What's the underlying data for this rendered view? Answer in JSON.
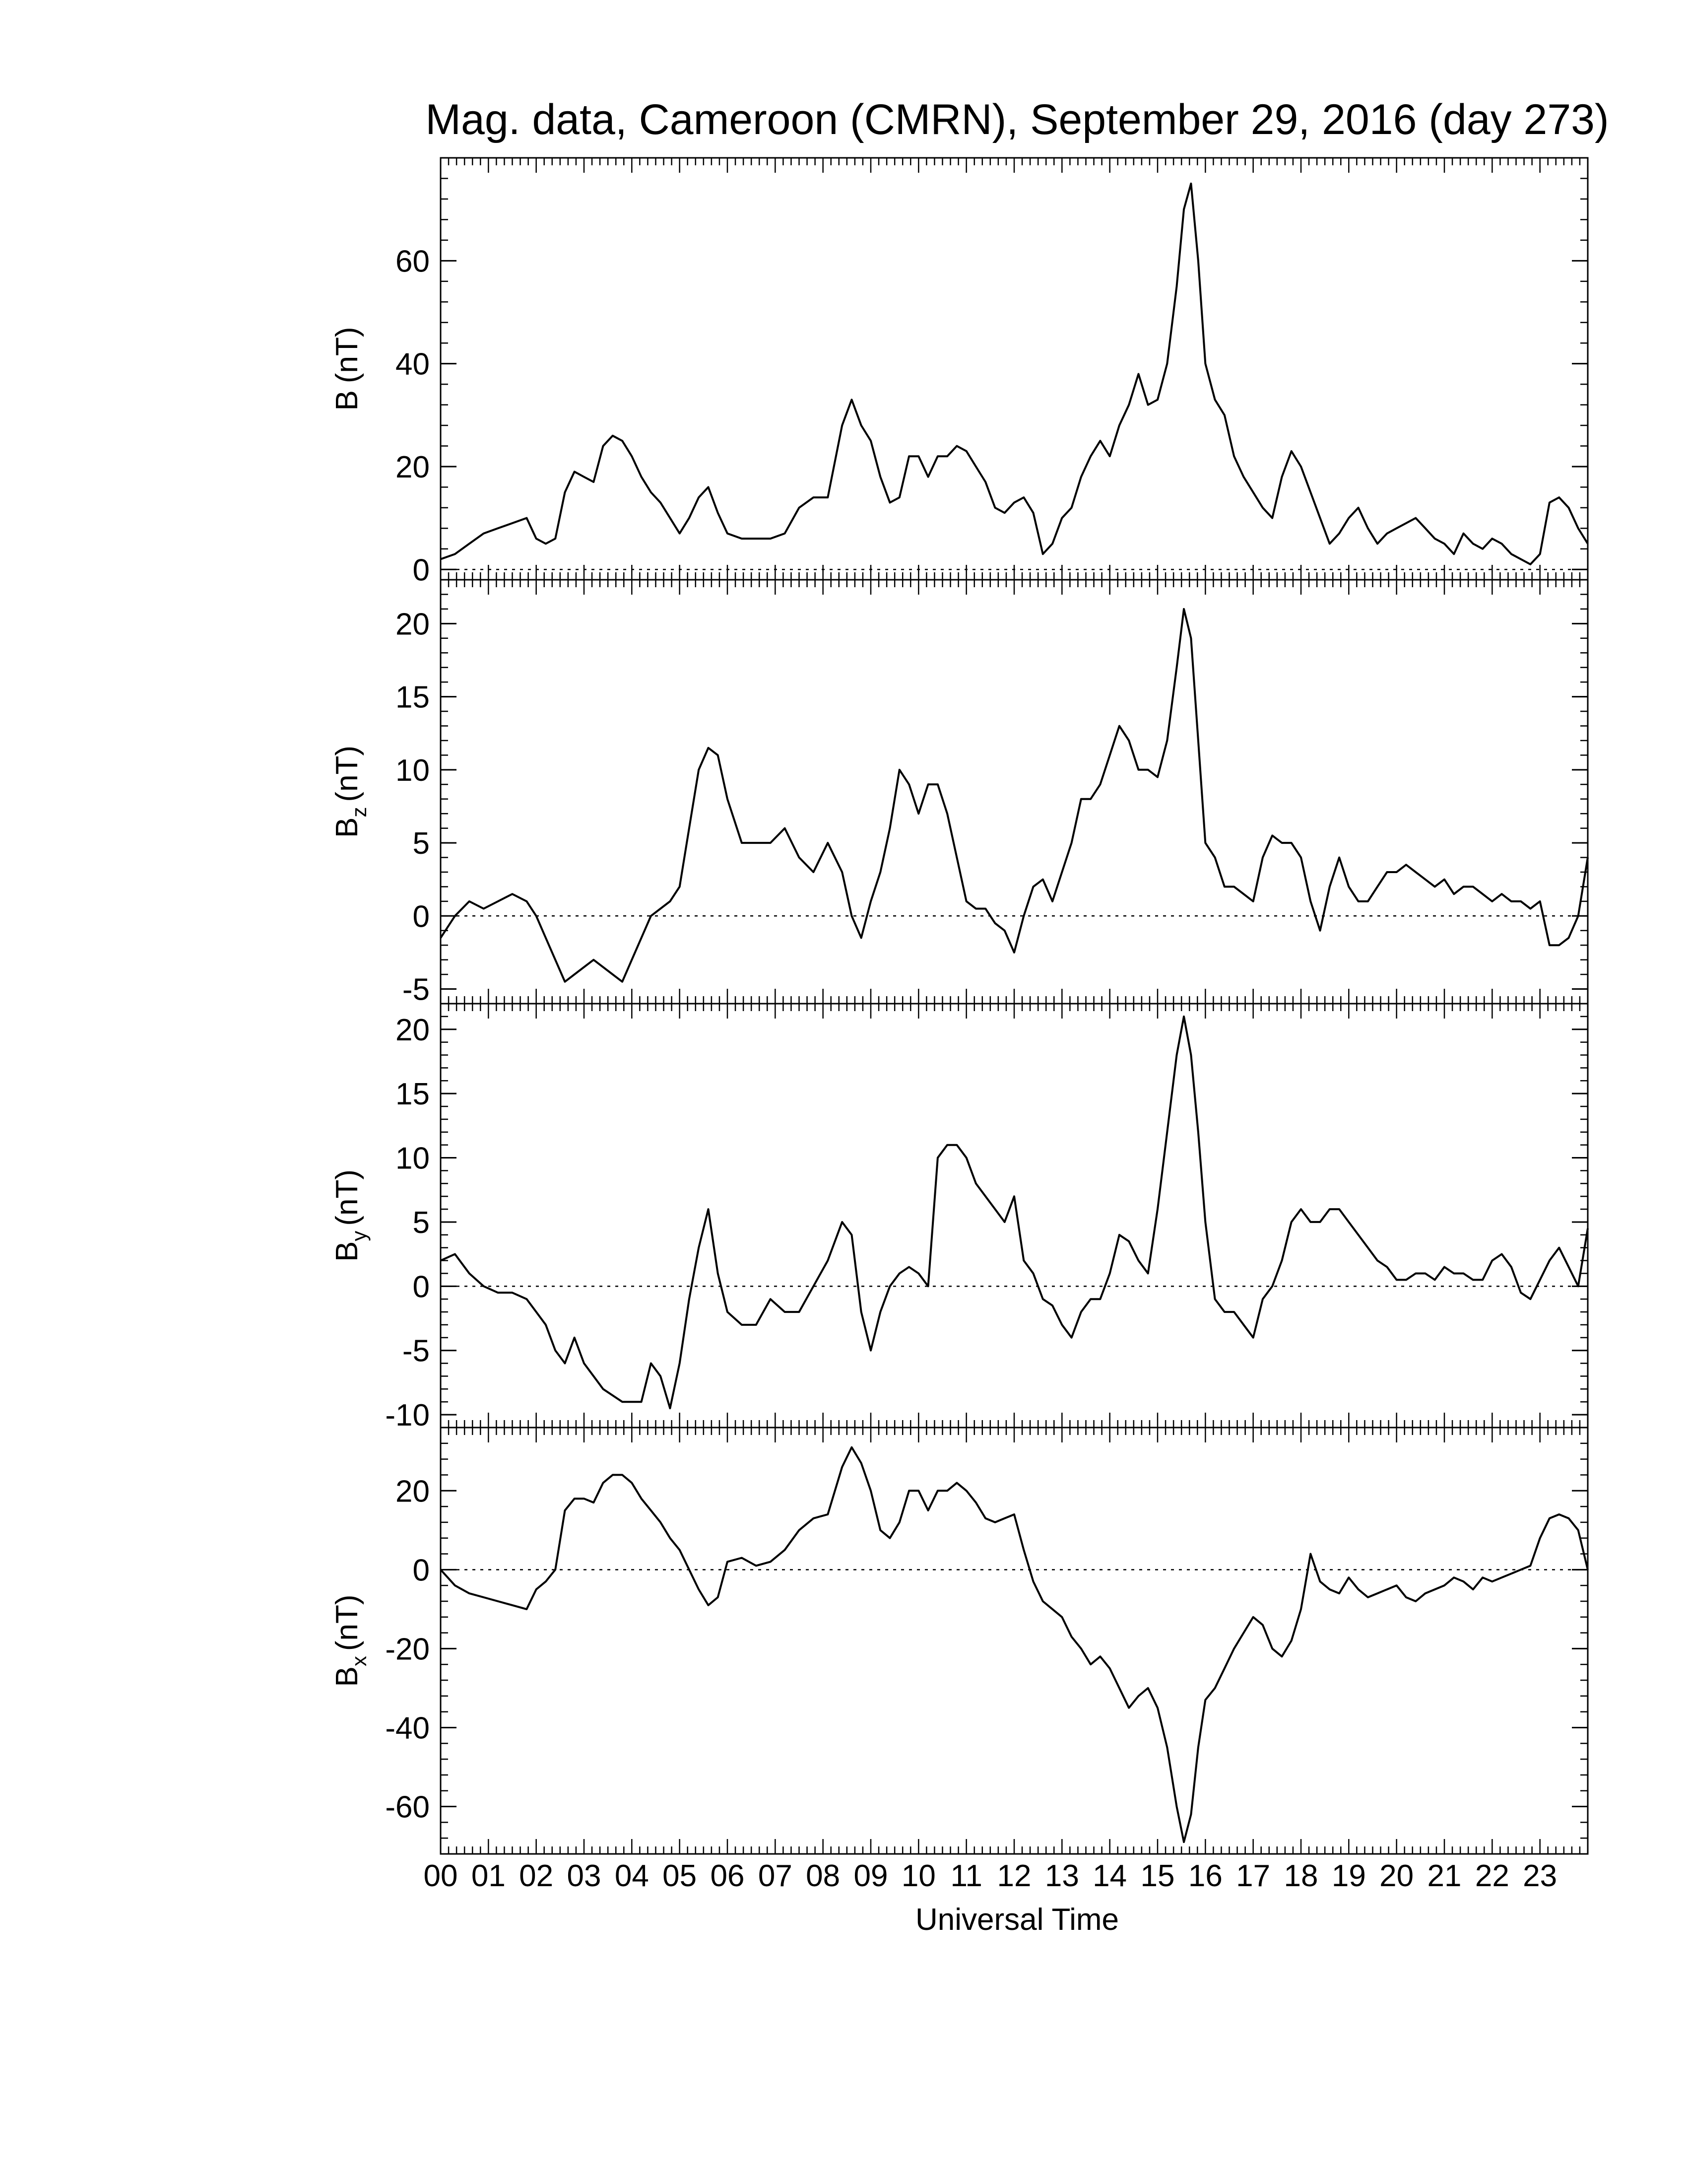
{
  "figure": {
    "title": "Mag. data, Cameroon (CMRN), September 29, 2016 (day 273)",
    "xlabel": "Universal Time",
    "line_color": "#000000",
    "zero_line_style": "dotted"
  },
  "chart_data": [
    {
      "type": "line",
      "panel": "B",
      "ylabel": {
        "main": "B",
        "sub": "",
        "unit": "(nT)"
      },
      "ylim": [
        -2,
        80
      ],
      "yticks": [
        0,
        20,
        40,
        60
      ],
      "ytick_labels": [
        "0",
        "20",
        "40",
        "60"
      ],
      "xlim": [
        0,
        24
      ],
      "zero_line": true,
      "series": [
        {
          "x": [
            0,
            0.3,
            0.6,
            0.9,
            1.2,
            1.5,
            1.8,
            2.0,
            2.2,
            2.4,
            2.6,
            2.8,
            3.0,
            3.2,
            3.4,
            3.6,
            3.8,
            4.0,
            4.2,
            4.4,
            4.6,
            4.8,
            5.0,
            5.2,
            5.4,
            5.6,
            5.8,
            6.0,
            6.3,
            6.6,
            6.9,
            7.2,
            7.5,
            7.8,
            8.1,
            8.4,
            8.6,
            8.8,
            9.0,
            9.2,
            9.4,
            9.6,
            9.8,
            10.0,
            10.2,
            10.4,
            10.6,
            10.8,
            11.0,
            11.2,
            11.4,
            11.6,
            11.8,
            12.0,
            12.2,
            12.4,
            12.6,
            12.8,
            13.0,
            13.2,
            13.4,
            13.6,
            13.8,
            14.0,
            14.2,
            14.4,
            14.6,
            14.8,
            15.0,
            15.2,
            15.4,
            15.55,
            15.7,
            15.85,
            16.0,
            16.2,
            16.4,
            16.6,
            16.8,
            17.0,
            17.2,
            17.4,
            17.6,
            17.8,
            18.0,
            18.2,
            18.4,
            18.6,
            18.8,
            19.0,
            19.2,
            19.4,
            19.6,
            19.8,
            20.0,
            20.2,
            20.4,
            20.6,
            20.8,
            21.0,
            21.2,
            21.4,
            21.6,
            21.8,
            22.0,
            22.2,
            22.4,
            22.6,
            22.8,
            23.0,
            23.2,
            23.4,
            23.6,
            23.8,
            24.0
          ],
          "y": [
            2,
            3,
            5,
            7,
            8,
            9,
            10,
            6,
            5,
            6,
            15,
            19,
            18,
            17,
            24,
            26,
            25,
            22,
            18,
            15,
            13,
            10,
            7,
            10,
            14,
            16,
            11,
            7,
            6,
            6,
            6,
            7,
            12,
            14,
            14,
            28,
            33,
            28,
            25,
            18,
            13,
            14,
            22,
            22,
            18,
            22,
            22,
            24,
            23,
            20,
            17,
            12,
            11,
            13,
            14,
            11,
            3,
            5,
            10,
            12,
            18,
            22,
            25,
            22,
            28,
            32,
            38,
            32,
            33,
            40,
            55,
            70,
            75,
            60,
            40,
            33,
            30,
            22,
            18,
            15,
            12,
            10,
            18,
            23,
            20,
            15,
            10,
            5,
            7,
            10,
            12,
            8,
            5,
            7,
            8,
            9,
            10,
            8,
            6,
            5,
            3,
            7,
            5,
            4,
            6,
            5,
            3,
            2,
            1,
            3,
            13,
            14,
            12,
            8,
            5
          ]
        }
      ]
    },
    {
      "type": "line",
      "panel": "Bz",
      "ylabel": {
        "main": "B",
        "sub": "z",
        "unit": "(nT)"
      },
      "ylim": [
        -6,
        23
      ],
      "yticks": [
        -5,
        0,
        5,
        10,
        15,
        20
      ],
      "ytick_labels": [
        "-5",
        "0",
        "5",
        "10",
        "15",
        "20"
      ],
      "xlim": [
        0,
        24
      ],
      "zero_line": true,
      "series": [
        {
          "x": [
            0,
            0.3,
            0.6,
            0.9,
            1.2,
            1.5,
            1.8,
            2.0,
            2.2,
            2.4,
            2.6,
            2.8,
            3.0,
            3.2,
            3.4,
            3.6,
            3.8,
            4.0,
            4.2,
            4.4,
            4.6,
            4.8,
            5.0,
            5.2,
            5.4,
            5.6,
            5.8,
            6.0,
            6.3,
            6.6,
            6.9,
            7.2,
            7.5,
            7.8,
            8.1,
            8.4,
            8.6,
            8.8,
            9.0,
            9.2,
            9.4,
            9.6,
            9.8,
            10.0,
            10.2,
            10.4,
            10.6,
            10.8,
            11.0,
            11.2,
            11.4,
            11.6,
            11.8,
            12.0,
            12.2,
            12.4,
            12.6,
            12.8,
            13.0,
            13.2,
            13.4,
            13.6,
            13.8,
            14.0,
            14.2,
            14.4,
            14.6,
            14.8,
            15.0,
            15.2,
            15.4,
            15.55,
            15.7,
            15.85,
            16.0,
            16.2,
            16.4,
            16.6,
            16.8,
            17.0,
            17.2,
            17.4,
            17.6,
            17.8,
            18.0,
            18.2,
            18.4,
            18.6,
            18.8,
            19.0,
            19.2,
            19.4,
            19.6,
            19.8,
            20.0,
            20.2,
            20.4,
            20.6,
            20.8,
            21.0,
            21.2,
            21.4,
            21.6,
            21.8,
            22.0,
            22.2,
            22.4,
            22.6,
            22.8,
            23.0,
            23.2,
            23.4,
            23.6,
            23.8,
            24.0
          ],
          "y": [
            -1.5,
            0,
            1,
            0.5,
            1,
            1.5,
            1,
            0,
            -1.5,
            -3,
            -4.5,
            -4,
            -3.5,
            -3,
            -3.5,
            -4,
            -4.5,
            -3,
            -1.5,
            0,
            0.5,
            1,
            2,
            6,
            10,
            11.5,
            11,
            8,
            5,
            5,
            5,
            6,
            4,
            3,
            5,
            3,
            0,
            -1.5,
            1,
            3,
            6,
            10,
            9,
            7,
            9,
            9,
            7,
            4,
            1,
            0.5,
            0.5,
            -0.5,
            -1,
            -2.5,
            0,
            2,
            2.5,
            1,
            3,
            5,
            8,
            8,
            9,
            11,
            13,
            12,
            10,
            10,
            9.5,
            12,
            17,
            21,
            19,
            12,
            5,
            4,
            2,
            2,
            1.5,
            1,
            4,
            5.5,
            5,
            5,
            4,
            1,
            -1,
            2,
            4,
            2,
            1,
            1,
            2,
            3,
            3,
            3.5,
            3,
            2.5,
            2,
            2.5,
            1.5,
            2,
            2,
            1.5,
            1,
            1.5,
            1,
            1,
            0.5,
            1,
            -2,
            -2,
            -1.5,
            0,
            4
          ]
        }
      ]
    },
    {
      "type": "line",
      "panel": "By",
      "ylabel": {
        "main": "B",
        "sub": "y",
        "unit": "(nT)"
      },
      "ylim": [
        -11,
        22
      ],
      "yticks": [
        -10,
        -5,
        0,
        5,
        10,
        15,
        20
      ],
      "ytick_labels": [
        "-10",
        "-5",
        "0",
        "5",
        "10",
        "15",
        "20"
      ],
      "xlim": [
        0,
        24
      ],
      "zero_line": true,
      "series": [
        {
          "x": [
            0,
            0.3,
            0.6,
            0.9,
            1.2,
            1.5,
            1.8,
            2.0,
            2.2,
            2.4,
            2.6,
            2.8,
            3.0,
            3.2,
            3.4,
            3.6,
            3.8,
            4.0,
            4.2,
            4.4,
            4.6,
            4.8,
            5.0,
            5.2,
            5.4,
            5.6,
            5.8,
            6.0,
            6.3,
            6.6,
            6.9,
            7.2,
            7.5,
            7.8,
            8.1,
            8.4,
            8.6,
            8.8,
            9.0,
            9.2,
            9.4,
            9.6,
            9.8,
            10.0,
            10.2,
            10.4,
            10.6,
            10.8,
            11.0,
            11.2,
            11.4,
            11.6,
            11.8,
            12.0,
            12.2,
            12.4,
            12.6,
            12.8,
            13.0,
            13.2,
            13.4,
            13.6,
            13.8,
            14.0,
            14.2,
            14.4,
            14.6,
            14.8,
            15.0,
            15.2,
            15.4,
            15.55,
            15.7,
            15.85,
            16.0,
            16.2,
            16.4,
            16.6,
            16.8,
            17.0,
            17.2,
            17.4,
            17.6,
            17.8,
            18.0,
            18.2,
            18.4,
            18.6,
            18.8,
            19.0,
            19.2,
            19.4,
            19.6,
            19.8,
            20.0,
            20.2,
            20.4,
            20.6,
            20.8,
            21.0,
            21.2,
            21.4,
            21.6,
            21.8,
            22.0,
            22.2,
            22.4,
            22.6,
            22.8,
            23.0,
            23.2,
            23.4,
            23.6,
            23.8,
            24.0
          ],
          "y": [
            2,
            2.5,
            1,
            0,
            -0.5,
            -0.5,
            -1,
            -2,
            -3,
            -5,
            -6,
            -4,
            -6,
            -7,
            -8,
            -8.5,
            -9,
            -9,
            -9,
            -6,
            -7,
            -9.5,
            -6,
            -1,
            3,
            6,
            1,
            -2,
            -3,
            -3,
            -1,
            -2,
            -2,
            0,
            2,
            5,
            4,
            -2,
            -5,
            -2,
            0,
            1,
            1.5,
            1,
            0,
            10,
            11,
            11,
            10,
            8,
            7,
            6,
            5,
            7,
            2,
            1,
            -1,
            -1.5,
            -3,
            -4,
            -2,
            -1,
            -1,
            1,
            4,
            3.5,
            2,
            1,
            6,
            12,
            18,
            21,
            18,
            12,
            5,
            -1,
            -2,
            -2,
            -3,
            -4,
            -1,
            0,
            2,
            5,
            6,
            5,
            5,
            6,
            6,
            5,
            4,
            3,
            2,
            1.5,
            0.5,
            0.5,
            1,
            1,
            0.5,
            1.5,
            1,
            1,
            0.5,
            0.5,
            2,
            2.5,
            1.5,
            -0.5,
            -1,
            0.5,
            2,
            3,
            1.5,
            0,
            4.5
          ]
        }
      ]
    },
    {
      "type": "line",
      "panel": "Bx",
      "ylabel": {
        "main": "B",
        "sub": "x",
        "unit": "(nT)"
      },
      "ylim": [
        -72,
        36
      ],
      "yticks": [
        -60,
        -40,
        -20,
        0,
        20
      ],
      "ytick_labels": [
        "-60",
        "-40",
        "-20",
        "0",
        "20"
      ],
      "xlim": [
        0,
        24
      ],
      "zero_line": true,
      "series": [
        {
          "x": [
            0,
            0.3,
            0.6,
            0.9,
            1.2,
            1.5,
            1.8,
            2.0,
            2.2,
            2.4,
            2.6,
            2.8,
            3.0,
            3.2,
            3.4,
            3.6,
            3.8,
            4.0,
            4.2,
            4.4,
            4.6,
            4.8,
            5.0,
            5.2,
            5.4,
            5.6,
            5.8,
            6.0,
            6.3,
            6.6,
            6.9,
            7.2,
            7.5,
            7.8,
            8.1,
            8.4,
            8.6,
            8.8,
            9.0,
            9.2,
            9.4,
            9.6,
            9.8,
            10.0,
            10.2,
            10.4,
            10.6,
            10.8,
            11.0,
            11.2,
            11.4,
            11.6,
            11.8,
            12.0,
            12.2,
            12.4,
            12.6,
            12.8,
            13.0,
            13.2,
            13.4,
            13.6,
            13.8,
            14.0,
            14.2,
            14.4,
            14.6,
            14.8,
            15.0,
            15.2,
            15.4,
            15.55,
            15.7,
            15.85,
            16.0,
            16.2,
            16.4,
            16.6,
            16.8,
            17.0,
            17.2,
            17.4,
            17.6,
            17.8,
            18.0,
            18.2,
            18.4,
            18.6,
            18.8,
            19.0,
            19.2,
            19.4,
            19.6,
            19.8,
            20.0,
            20.2,
            20.4,
            20.6,
            20.8,
            21.0,
            21.2,
            21.4,
            21.6,
            21.8,
            22.0,
            22.2,
            22.4,
            22.6,
            22.8,
            23.0,
            23.2,
            23.4,
            23.6,
            23.8,
            24.0
          ],
          "y": [
            0,
            -4,
            -6,
            -7,
            -8,
            -9,
            -10,
            -5,
            -3,
            0,
            15,
            18,
            18,
            17,
            22,
            24,
            24,
            22,
            18,
            15,
            12,
            8,
            5,
            0,
            -5,
            -9,
            -7,
            2,
            3,
            1,
            2,
            5,
            10,
            13,
            14,
            26,
            31,
            27,
            20,
            10,
            8,
            12,
            20,
            20,
            15,
            20,
            20,
            22,
            20,
            17,
            13,
            12,
            13,
            14,
            5,
            -3,
            -8,
            -10,
            -12,
            -17,
            -20,
            -24,
            -22,
            -25,
            -30,
            -35,
            -32,
            -30,
            -35,
            -45,
            -60,
            -69,
            -62,
            -45,
            -33,
            -30,
            -25,
            -20,
            -16,
            -12,
            -14,
            -20,
            -22,
            -18,
            -10,
            4,
            -3,
            -5,
            -6,
            -2,
            -5,
            -7,
            -6,
            -5,
            -4,
            -7,
            -8,
            -6,
            -5,
            -4,
            -2,
            -3,
            -5,
            -2,
            -3,
            -2,
            -1,
            0,
            1,
            8,
            13,
            14,
            13,
            10,
            0
          ]
        }
      ]
    }
  ],
  "x_axis": {
    "tick_labels": [
      "00",
      "01",
      "02",
      "03",
      "04",
      "05",
      "06",
      "07",
      "08",
      "09",
      "10",
      "11",
      "12",
      "13",
      "14",
      "15",
      "16",
      "17",
      "18",
      "19",
      "20",
      "21",
      "22",
      "23"
    ]
  }
}
